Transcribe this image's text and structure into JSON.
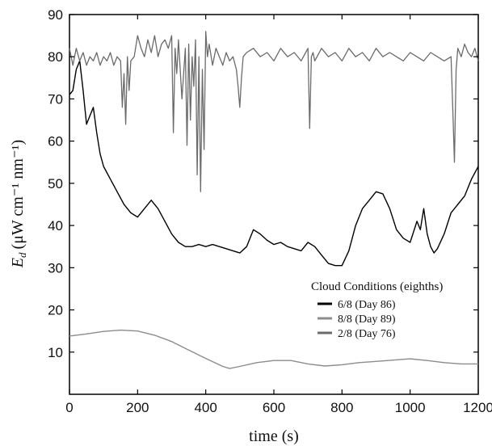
{
  "chart_data": {
    "type": "line",
    "xlabel": "time (s)",
    "ylabel": "E",
    "ylabel_subscript": "d",
    "ylabel_units": "(μW cm⁻¹ nm⁻¹)",
    "xlim": [
      0,
      1200
    ],
    "ylim": [
      0,
      90
    ],
    "x_ticks": [
      0,
      200,
      400,
      600,
      800,
      1000,
      1200
    ],
    "y_ticks": [
      10,
      20,
      30,
      40,
      50,
      60,
      70,
      80,
      90
    ],
    "grid": false,
    "legend": {
      "title": "Cloud Conditions (eighths)",
      "position": "lower-right"
    },
    "series": [
      {
        "name": "6/8 (Day 86)",
        "color": "#000000",
        "x": [
          0,
          10,
          20,
          30,
          40,
          50,
          60,
          70,
          80,
          90,
          100,
          120,
          140,
          160,
          180,
          200,
          220,
          240,
          260,
          280,
          300,
          320,
          340,
          360,
          380,
          400,
          420,
          440,
          460,
          480,
          500,
          520,
          540,
          560,
          580,
          600,
          620,
          640,
          660,
          680,
          700,
          720,
          740,
          760,
          780,
          800,
          820,
          840,
          860,
          880,
          900,
          920,
          940,
          960,
          980,
          1000,
          1020,
          1030,
          1040,
          1050,
          1060,
          1070,
          1080,
          1100,
          1120,
          1140,
          1160,
          1180,
          1200
        ],
        "values": [
          71,
          72,
          77,
          79,
          72,
          64,
          66,
          68,
          62,
          57,
          54,
          51,
          48,
          45,
          43,
          42,
          44,
          46,
          44,
          41,
          38,
          36,
          35,
          35,
          35.5,
          35,
          35.5,
          35,
          34.5,
          34,
          33.5,
          35,
          39,
          38,
          36.5,
          35.5,
          36,
          35,
          34.5,
          34,
          36,
          35,
          33,
          31,
          30.5,
          30.5,
          34,
          40,
          44,
          46,
          48,
          47.5,
          44,
          39,
          37,
          36,
          41,
          39,
          44,
          38,
          35,
          33.5,
          34.5,
          38,
          43,
          45,
          47,
          51,
          54
        ]
      },
      {
        "name": "8/8 (Day 89)",
        "color": "#8c8c8c",
        "x": [
          0,
          50,
          100,
          150,
          200,
          250,
          300,
          350,
          400,
          450,
          470,
          500,
          550,
          600,
          650,
          700,
          750,
          800,
          850,
          900,
          950,
          1000,
          1050,
          1100,
          1150,
          1200
        ],
        "values": [
          13.8,
          14.3,
          14.9,
          15.2,
          15.0,
          14.0,
          12.5,
          10.5,
          8.5,
          6.6,
          6.1,
          6.6,
          7.5,
          8.0,
          8.0,
          7.2,
          6.7,
          7.0,
          7.5,
          7.8,
          8.1,
          8.4,
          8.0,
          7.5,
          7.2,
          7.2
        ]
      },
      {
        "name": "2/8 (Day 76)",
        "color": "#6b6b6b",
        "x": [
          0,
          10,
          20,
          30,
          40,
          50,
          60,
          70,
          80,
          90,
          100,
          110,
          120,
          130,
          140,
          150,
          155,
          160,
          165,
          170,
          175,
          180,
          190,
          200,
          210,
          220,
          230,
          240,
          250,
          260,
          270,
          280,
          290,
          300,
          305,
          310,
          315,
          320,
          330,
          340,
          345,
          350,
          355,
          360,
          365,
          370,
          375,
          380,
          385,
          390,
          395,
          400,
          405,
          410,
          420,
          430,
          440,
          450,
          460,
          470,
          480,
          490,
          495,
          500,
          505,
          510,
          520,
          540,
          560,
          580,
          600,
          620,
          640,
          660,
          680,
          700,
          705,
          710,
          715,
          720,
          740,
          760,
          780,
          800,
          820,
          840,
          860,
          880,
          900,
          920,
          940,
          960,
          980,
          1000,
          1020,
          1040,
          1060,
          1080,
          1100,
          1120,
          1125,
          1130,
          1135,
          1140,
          1150,
          1160,
          1170,
          1180,
          1190,
          1200
        ],
        "values": [
          82,
          78,
          82,
          79,
          81,
          78,
          80,
          79,
          81,
          78,
          80,
          79,
          81,
          78,
          80,
          79,
          68,
          76,
          64,
          80,
          72,
          79,
          80,
          85,
          82,
          80,
          84,
          81,
          85,
          80,
          83,
          84,
          82,
          85,
          62,
          82,
          76,
          84,
          70,
          82,
          59,
          83,
          65,
          80,
          73,
          84,
          52,
          80,
          48,
          77,
          58,
          86,
          80,
          83,
          78,
          82,
          80,
          78,
          81,
          79,
          80,
          77,
          73,
          68,
          75,
          80,
          81,
          82,
          80,
          81,
          79,
          82,
          80,
          81,
          79,
          82,
          63,
          80,
          81,
          79,
          82,
          80,
          81,
          79,
          82,
          80,
          81,
          79,
          82,
          80,
          81,
          80,
          79,
          81,
          80,
          79,
          81,
          80,
          79,
          80,
          68,
          55,
          77,
          82,
          80,
          83,
          81,
          80,
          82,
          79
        ]
      }
    ]
  }
}
